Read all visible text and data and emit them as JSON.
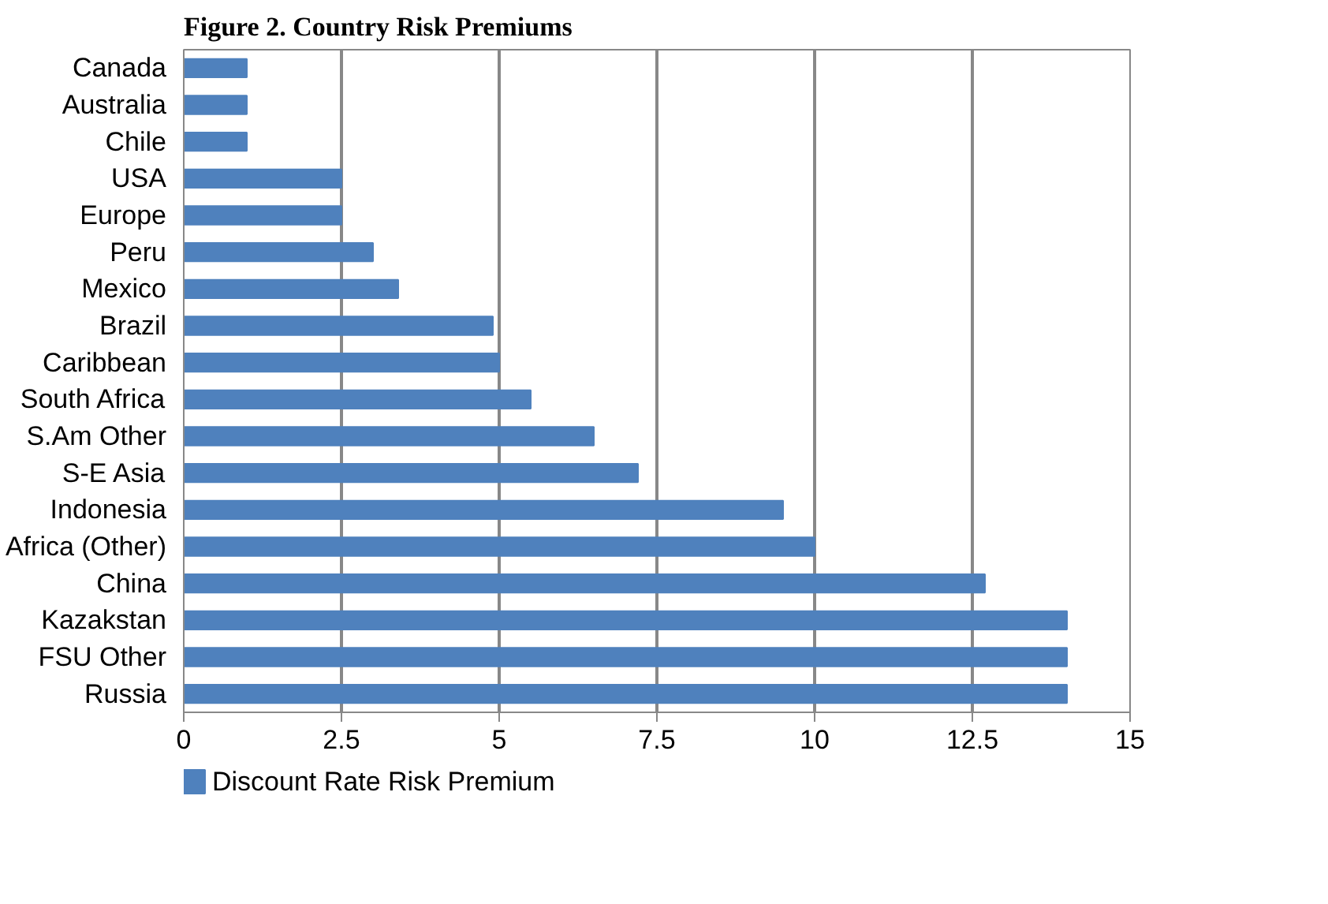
{
  "chart_data": {
    "type": "bar",
    "orientation": "horizontal",
    "title": "Figure 2. Country Risk Premiums",
    "categories": [
      "Canada",
      "Australia",
      "Chile",
      "USA",
      "Europe",
      "Peru",
      "Mexico",
      "Brazil",
      "Caribbean",
      "South Africa",
      "S.Am Other",
      "S-E Asia",
      "Indonesia",
      "Africa (Other)",
      "China",
      "Kazakstan",
      "FSU Other",
      "Russia"
    ],
    "series": [
      {
        "name": "Discount Rate Risk Premium",
        "color": "#4f81bd",
        "values": [
          1,
          1,
          1,
          2.5,
          2.5,
          3,
          3.4,
          4.9,
          5,
          5.5,
          6.5,
          7.2,
          9.5,
          10,
          12.7,
          14,
          14,
          14
        ]
      }
    ],
    "xlim": [
      0,
      15
    ],
    "xticks": [
      0,
      2.5,
      5,
      7.5,
      10,
      12.5,
      15
    ],
    "grid": "x",
    "legend": "bottom"
  }
}
